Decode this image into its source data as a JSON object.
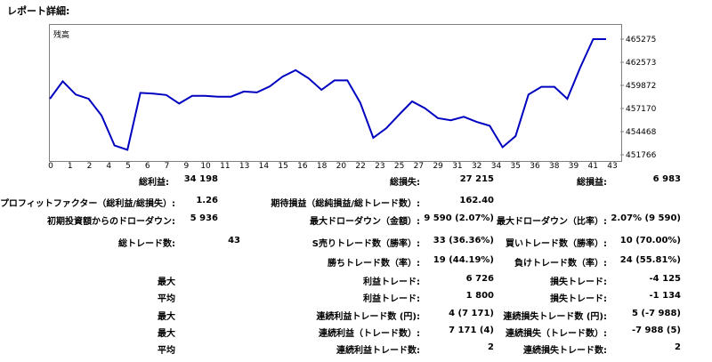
{
  "page": {
    "title": "レポート詳細:"
  },
  "chart_data": {
    "type": "line",
    "label": "残高",
    "x_ticks": [
      "0",
      "1",
      "2",
      "4",
      "5",
      "6",
      "7",
      "9",
      "10",
      "11",
      "13",
      "14",
      "15",
      "16",
      "18",
      "20",
      "22",
      "23",
      "25",
      "27",
      "29",
      "31",
      "32",
      "34",
      "35",
      "36",
      "38",
      "39",
      "41",
      "43"
    ],
    "y_ticks": [
      465275,
      462573,
      459872,
      457170,
      454468,
      451766
    ],
    "ylim": [
      451766,
      465275
    ],
    "x": [
      0,
      1,
      2,
      3,
      4,
      5,
      6,
      7,
      8,
      9,
      10,
      11,
      12,
      13,
      14,
      15,
      16,
      17,
      18,
      19,
      20,
      21,
      22,
      23,
      24,
      25,
      26,
      27,
      28,
      29,
      30,
      31,
      32,
      33,
      34,
      35,
      36,
      37,
      38,
      39,
      40,
      41,
      42,
      43
    ],
    "y": [
      458300,
      460350,
      458800,
      458300,
      456350,
      452850,
      452350,
      459000,
      458900,
      458750,
      457750,
      458650,
      458650,
      458550,
      458550,
      459150,
      459050,
      459750,
      460900,
      461650,
      460700,
      459350,
      460450,
      460450,
      457850,
      453750,
      454850,
      456450,
      458000,
      457200,
      456050,
      455800,
      456200,
      455600,
      455150,
      452650,
      453950,
      458800,
      459700,
      459700,
      458300,
      461950,
      465275,
      465275
    ],
    "color": "#0000c0"
  },
  "stats": {
    "r1": {
      "a_label": "総利益:",
      "a_value": "34 198",
      "b_label": "総損失:",
      "b_value": "27 215",
      "c_label": "総損益:",
      "c_value": "6 983"
    },
    "r2": {
      "a_label": "プロフィットファクター（総利益/総損失）:",
      "a_value": "1.26",
      "b_label": "期待損益（総純損益/総トレード数）:",
      "b_value": "162.40"
    },
    "r3": {
      "a_label": "初期投資額からのドローダウン:",
      "a_value": "5 936",
      "b_label": "最大ドローダウン（金額）:",
      "b_value": "9 590 (2.07%)",
      "c_label": "最大ドローダウン（比率）:",
      "c_value": "2.07% (9 590)"
    },
    "r4": {
      "a_label": "総トレード数:",
      "a_value": "43",
      "b_label": "S売りトレード数（勝率）:",
      "b_value": "33 (36.36%)",
      "c_label": "買いトレード数（勝率）:",
      "c_value": "10 (70.00%)"
    },
    "r5": {
      "b_label": "勝ちトレード数（率）:",
      "b_value": "19 (44.19%)",
      "c_label": "負けトレード数（率）:",
      "c_value": "24 (55.81%)"
    },
    "r6": {
      "a_label": "最大",
      "b_label": "利益トレード:",
      "b_value": "6 726",
      "c_label": "損失トレード:",
      "c_value": "-4 125"
    },
    "r7": {
      "a_label": "平均",
      "b_label": "利益トレード:",
      "b_value": "1 800",
      "c_label": "損失トレード:",
      "c_value": "-1 134"
    },
    "r8": {
      "a_label": "最大",
      "b_label": "連続利益トレード数 (円):",
      "b_value": "4 (7 171)",
      "c_label": "連続損失トレード数 (円):",
      "c_value": "5 (-7 988)"
    },
    "r9": {
      "a_label": "最大",
      "b_label": "連続利益（トレード数）:",
      "b_value": "7 171 (4)",
      "c_label": "連続損失（トレード数）:",
      "c_value": "-7 988 (5)"
    },
    "r10": {
      "a_label": "平均",
      "b_label": "連続利益トレード数:",
      "b_value": "2",
      "c_label": "連続損失トレード数:",
      "c_value": "2"
    }
  }
}
